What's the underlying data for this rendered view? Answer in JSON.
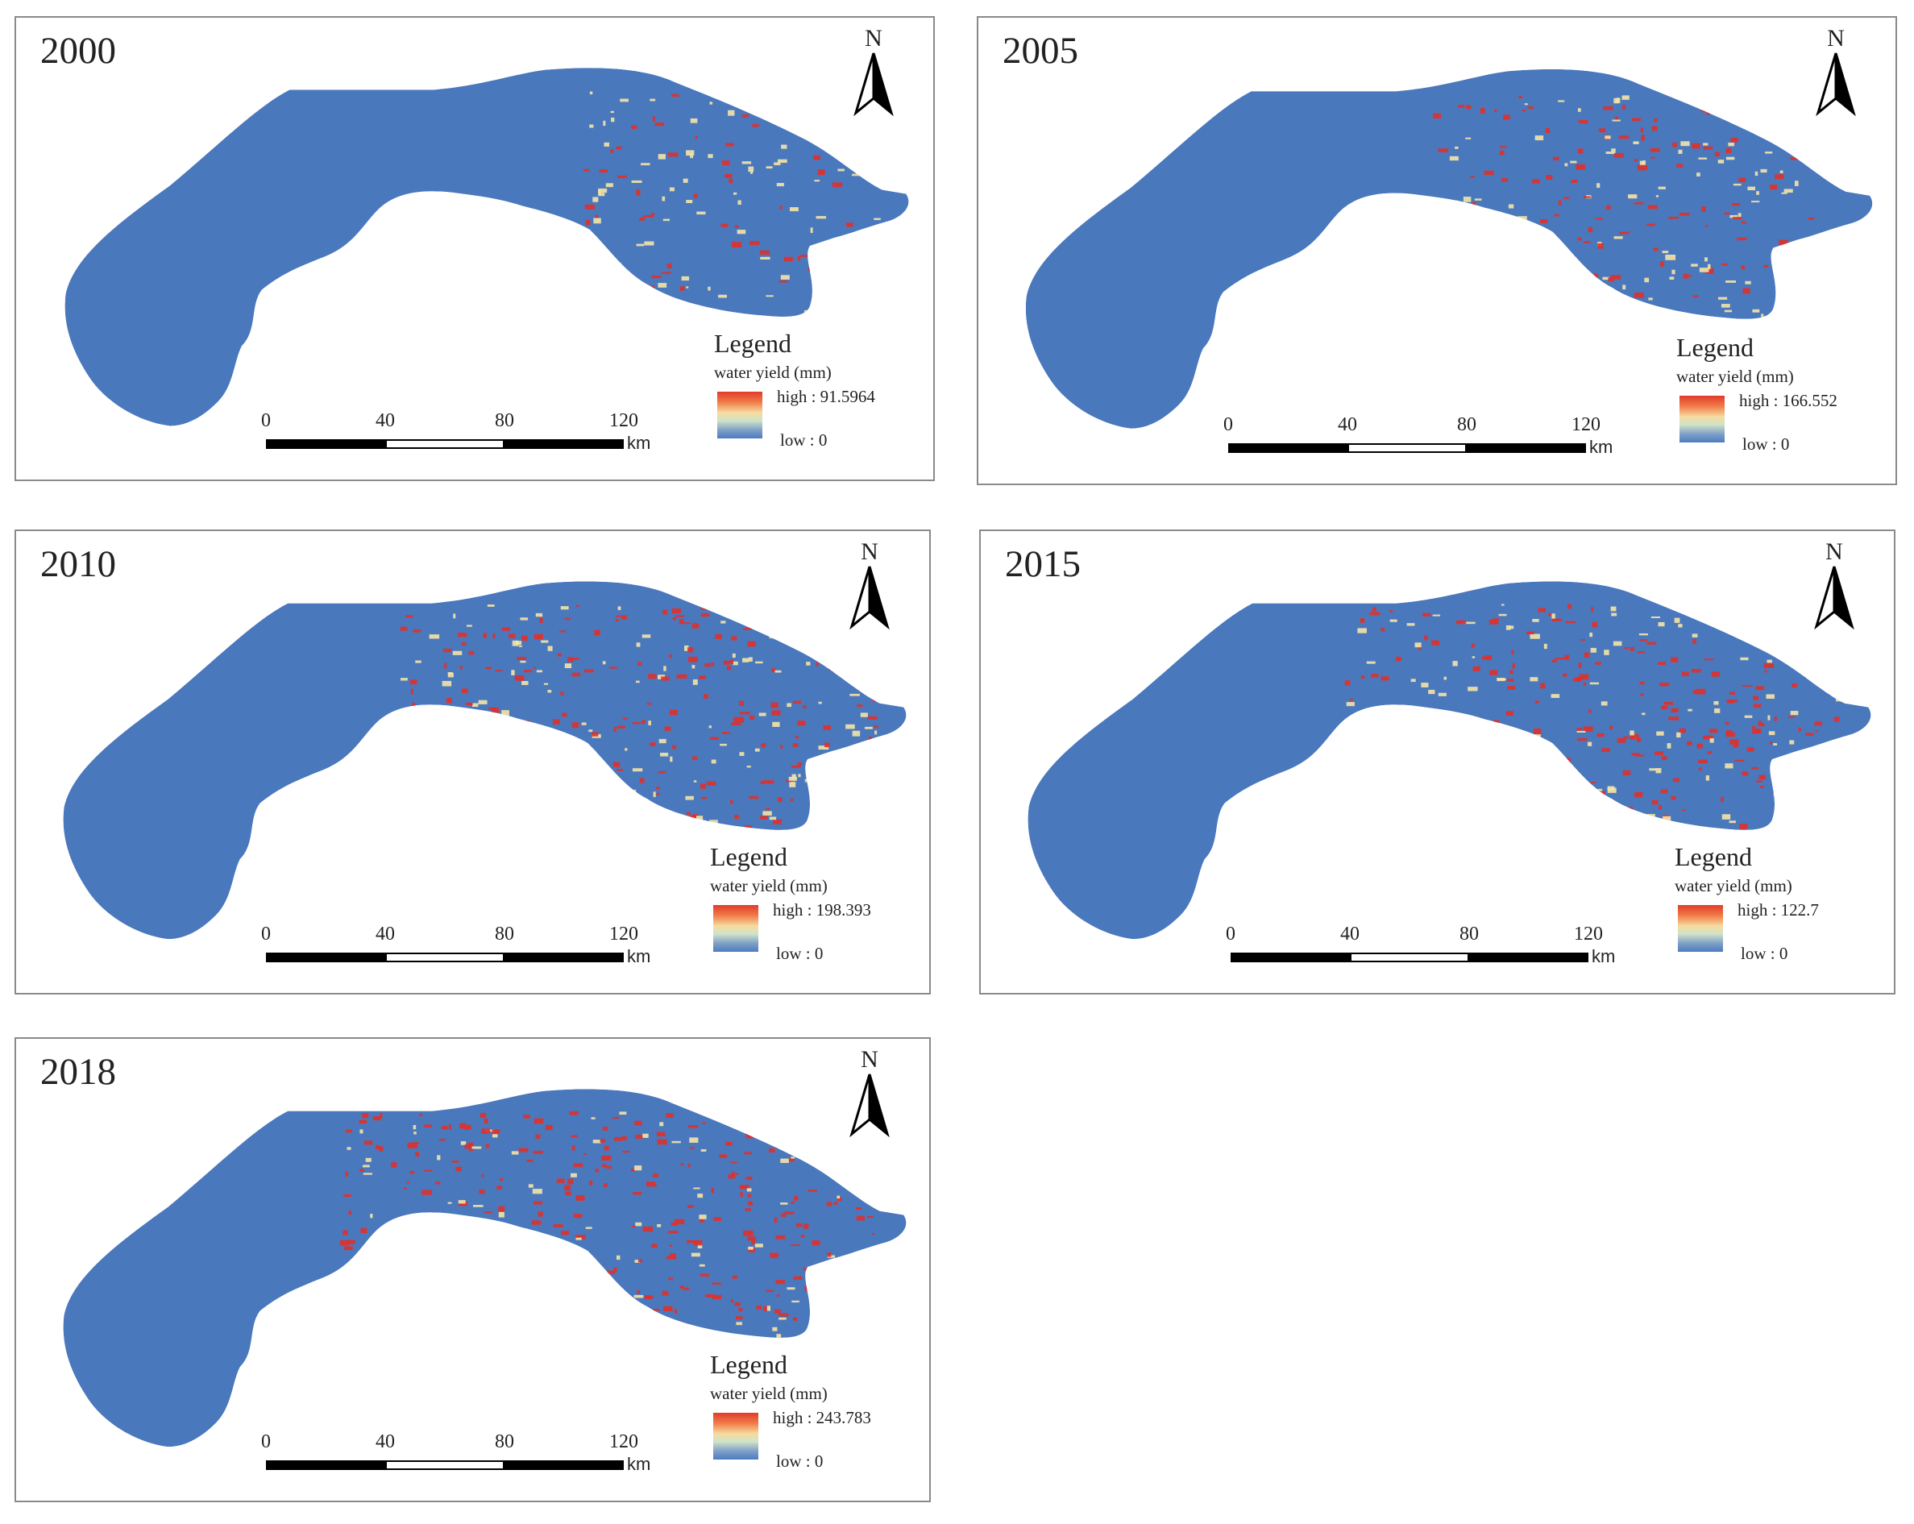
{
  "panels": [
    {
      "year": "2000",
      "high": "high : 91.5964",
      "low": "low  : 0",
      "level": 0.15
    },
    {
      "year": "2005",
      "high": "high : 166.552",
      "low": "low  : 0",
      "level": 0.45
    },
    {
      "year": "2010",
      "high": "high : 198.393",
      "low": "low  : 0",
      "level": 0.6
    },
    {
      "year": "2015",
      "high": "high : 122.7",
      "low": "low  : 0",
      "level": 0.65
    },
    {
      "year": "2018",
      "high": "high : 243.783",
      "low": "low  : 0",
      "level": 0.75
    }
  ],
  "legend": {
    "title": "Legend",
    "unit": "water yield (mm)"
  },
  "north": "N",
  "scalebar": {
    "ticks": [
      "0",
      "40",
      "80",
      "120"
    ],
    "unit": "km"
  },
  "colors": {
    "region": "#4a78bd",
    "high": "#e0302a",
    "mid": "#f5e3a5",
    "low": "#4d7bbf"
  }
}
